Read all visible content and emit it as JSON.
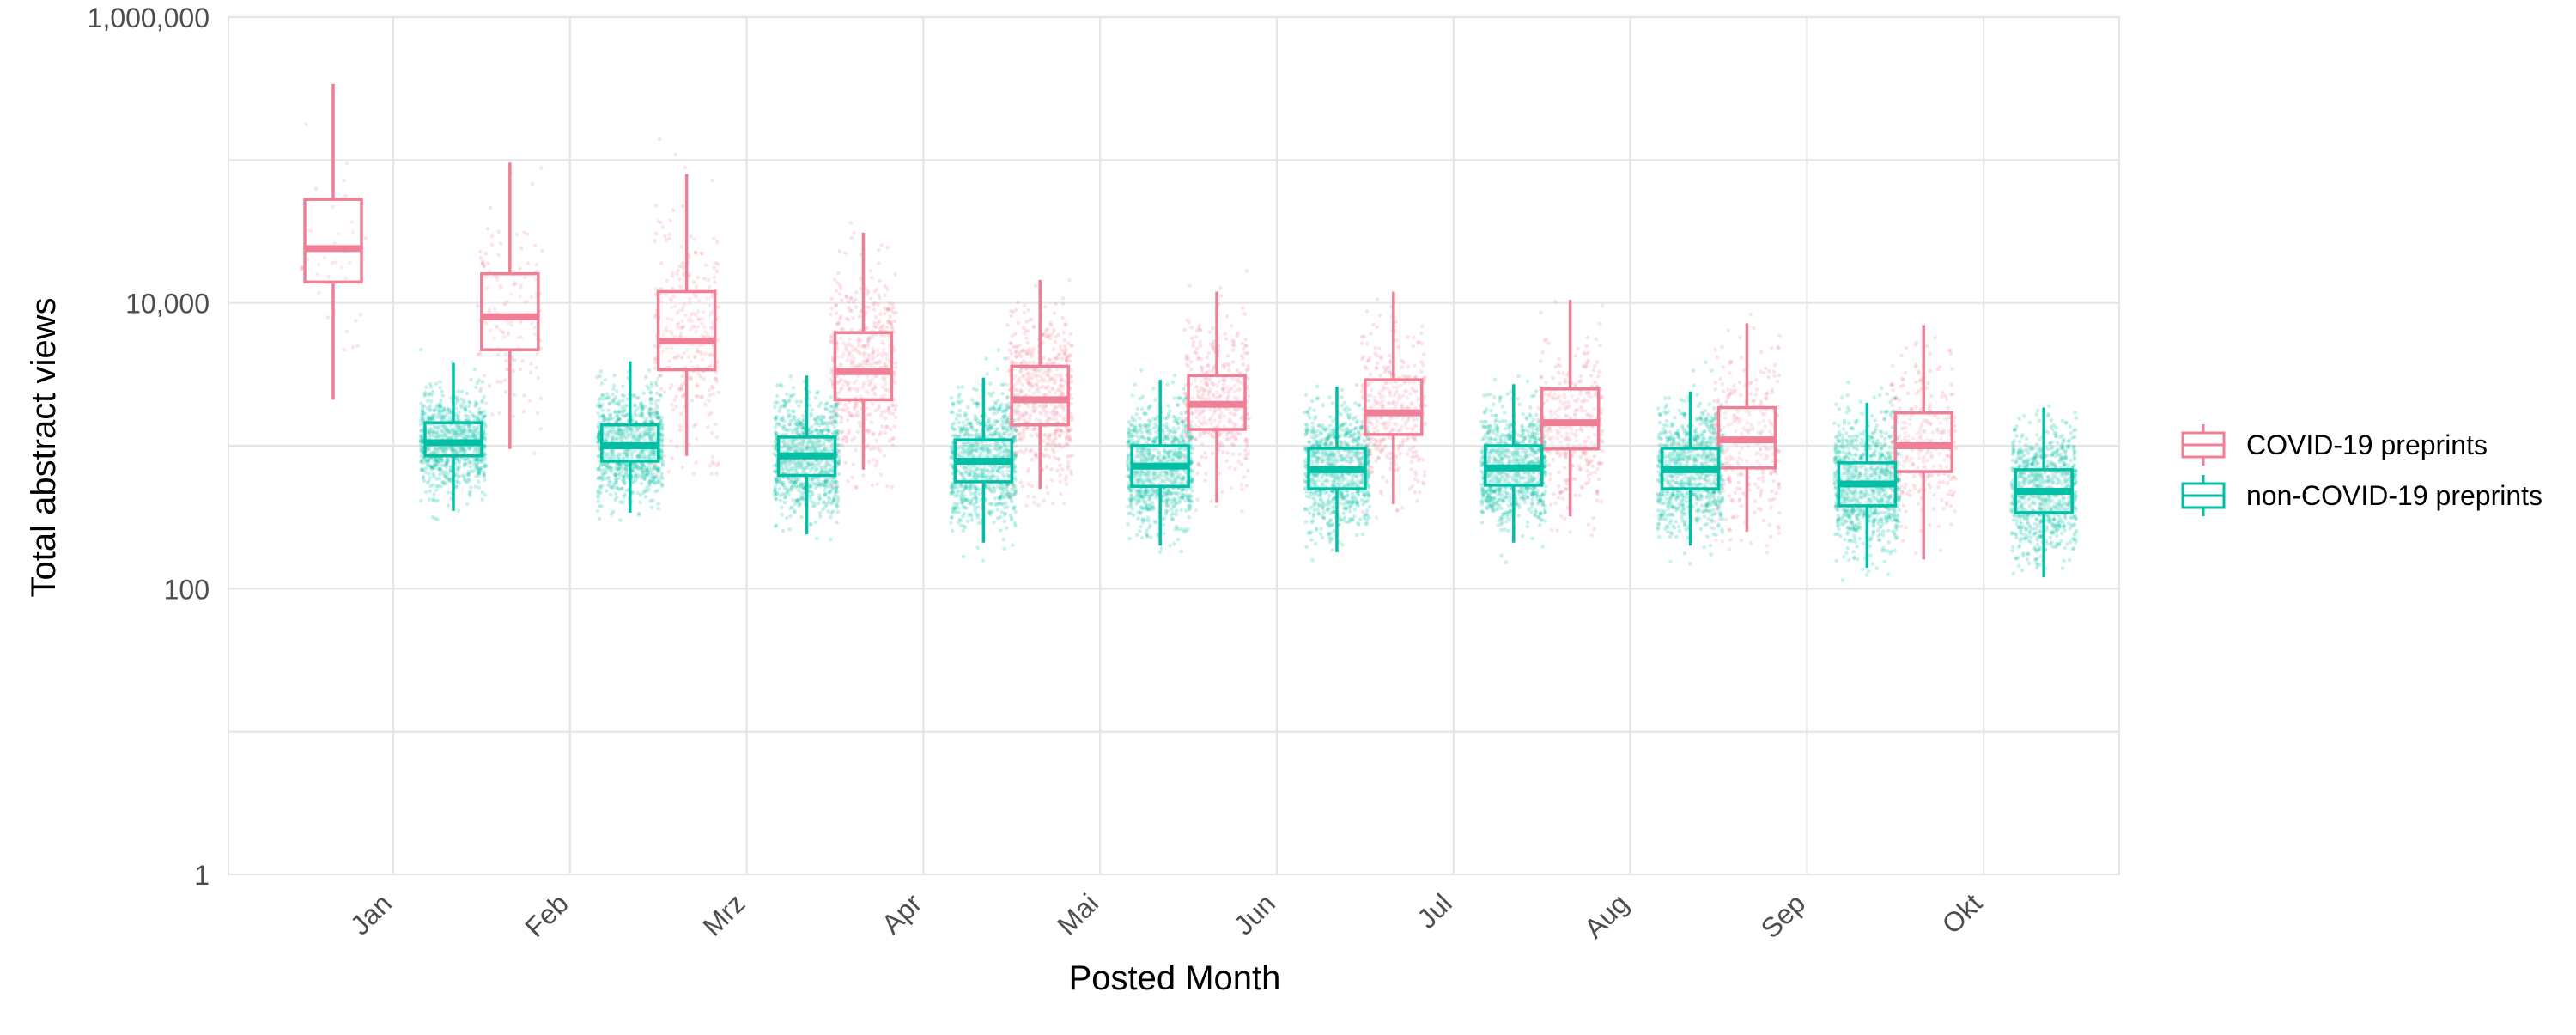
{
  "chart_data": {
    "type": "box",
    "xlabel": "Posted Month",
    "ylabel": "Total abstract views",
    "y_scale": "log10",
    "ylim": [
      1,
      1000000
    ],
    "y_ticks": [
      {
        "value": 1,
        "label": "1"
      },
      {
        "value": 100,
        "label": "100"
      },
      {
        "value": 10000,
        "label": "10,000"
      },
      {
        "value": 1000000,
        "label": "1,000,000"
      }
    ],
    "grid": true,
    "legend_position": "right",
    "categories": [
      "Jan",
      "Feb",
      "Mrz",
      "Apr",
      "Mai",
      "Jun",
      "Jul",
      "Aug",
      "Sep",
      "Okt"
    ],
    "series": [
      {
        "name": "COVID-19 preprints",
        "color": "#F07F96",
        "boxes": [
          {
            "min": 2100,
            "q1": 14000,
            "median": 24000,
            "q3": 53000,
            "max": 340000,
            "n": 40
          },
          {
            "min": 950,
            "q1": 4700,
            "median": 8000,
            "q3": 16000,
            "max": 96000,
            "n": 140
          },
          {
            "min": 850,
            "q1": 3400,
            "median": 5400,
            "q3": 12000,
            "max": 80000,
            "n": 300
          },
          {
            "min": 680,
            "q1": 2100,
            "median": 3300,
            "q3": 6200,
            "max": 31000,
            "n": 500
          },
          {
            "min": 500,
            "q1": 1400,
            "median": 2100,
            "q3": 3600,
            "max": 14500,
            "n": 600
          },
          {
            "min": 400,
            "q1": 1300,
            "median": 1950,
            "q3": 3100,
            "max": 12000,
            "n": 420
          },
          {
            "min": 390,
            "q1": 1200,
            "median": 1700,
            "q3": 2900,
            "max": 12000,
            "n": 380
          },
          {
            "min": 320,
            "q1": 950,
            "median": 1450,
            "q3": 2500,
            "max": 10500,
            "n": 330
          },
          {
            "min": 250,
            "q1": 700,
            "median": 1100,
            "q3": 1850,
            "max": 7200,
            "n": 300
          },
          {
            "min": 160,
            "q1": 660,
            "median": 1000,
            "q3": 1700,
            "max": 7000,
            "n": 280
          }
        ]
      },
      {
        "name": "non-COVID-19 preprints",
        "color": "#00BFA5",
        "boxes": [
          {
            "min": 350,
            "q1": 850,
            "median": 1050,
            "q3": 1450,
            "max": 3800,
            "n": 1100
          },
          {
            "min": 340,
            "q1": 780,
            "median": 1000,
            "q3": 1400,
            "max": 3900,
            "n": 1100
          },
          {
            "min": 240,
            "q1": 620,
            "median": 850,
            "q3": 1150,
            "max": 3100,
            "n": 1300
          },
          {
            "min": 210,
            "q1": 560,
            "median": 780,
            "q3": 1100,
            "max": 3000,
            "n": 1500
          },
          {
            "min": 200,
            "q1": 520,
            "median": 720,
            "q3": 1000,
            "max": 2900,
            "n": 1500
          },
          {
            "min": 180,
            "q1": 500,
            "median": 680,
            "q3": 960,
            "max": 2600,
            "n": 1500
          },
          {
            "min": 210,
            "q1": 530,
            "median": 700,
            "q3": 1000,
            "max": 2700,
            "n": 1500
          },
          {
            "min": 200,
            "q1": 500,
            "median": 680,
            "q3": 960,
            "max": 2400,
            "n": 1400
          },
          {
            "min": 140,
            "q1": 380,
            "median": 540,
            "q3": 760,
            "max": 2000,
            "n": 1400
          },
          {
            "min": 120,
            "q1": 340,
            "median": 480,
            "q3": 680,
            "max": 1850,
            "n": 1300
          }
        ]
      }
    ]
  }
}
